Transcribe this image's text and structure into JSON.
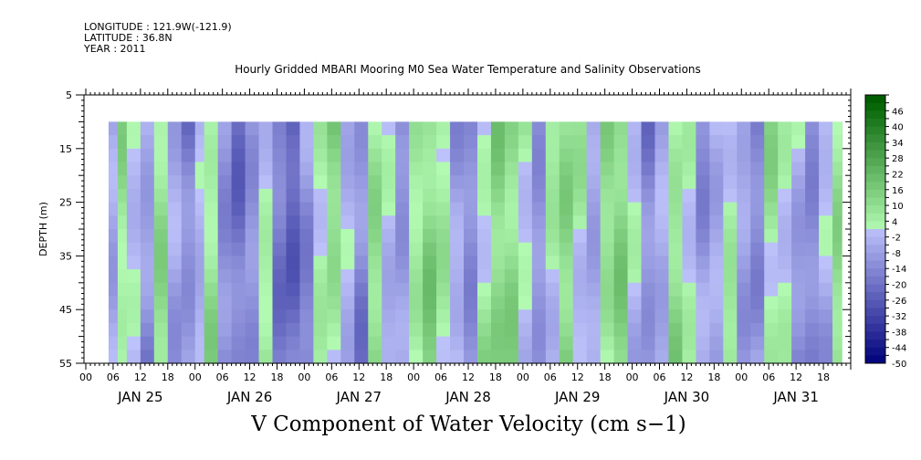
{
  "header": {
    "longitude": "LONGITUDE : 121.9W(-121.9)",
    "latitude": "LATITUDE : 36.8N",
    "year": "YEAR : 2011"
  },
  "chart_data": {
    "type": "heatmap",
    "title": "Hourly Gridded MBARI Mooring M0 Sea Water Temperature and Salinity Observations",
    "variable_label": "V Component of Water Velocity (cm s−1)",
    "ylabel": "DEPTH (m)",
    "ylim": [
      5,
      55
    ],
    "y_reversed": true,
    "y_ticks": [
      5,
      15,
      25,
      35,
      45,
      55
    ],
    "xlim_hours": [
      0,
      168
    ],
    "x_hour_labels": [
      "00",
      "06",
      "12",
      "18",
      "00",
      "06",
      "12",
      "18",
      "00",
      "06",
      "12",
      "18",
      "00",
      "06",
      "12",
      "18",
      "00",
      "06",
      "12",
      "18",
      "00",
      "06",
      "12",
      "18",
      "00",
      "06",
      "12",
      "18"
    ],
    "day_labels": [
      "JAN 25",
      "JAN 26",
      "JAN 27",
      "JAN 28",
      "JAN 29",
      "JAN 30",
      "JAN 31"
    ],
    "data_depth_range": [
      10,
      55
    ],
    "data_time_range_hours": [
      5,
      166
    ],
    "colorbar": {
      "labels": [
        "46",
        "40",
        "34",
        "28",
        "22",
        "16",
        "10",
        "4",
        "-2",
        "-8",
        "-14",
        "-20",
        "-26",
        "-32",
        "-38",
        "-44",
        "-50"
      ],
      "min": -50,
      "max": 52,
      "step": 3
    },
    "columns_mean_velocity": [
      {
        "hour": 5,
        "v": -6
      },
      {
        "hour": 7,
        "v": 6
      },
      {
        "hour": 9,
        "v": -2
      },
      {
        "hour": 12,
        "v": -10
      },
      {
        "hour": 15,
        "v": 8
      },
      {
        "hour": 18,
        "v": -8
      },
      {
        "hour": 21,
        "v": -14
      },
      {
        "hour": 24,
        "v": -4
      },
      {
        "hour": 26,
        "v": 6
      },
      {
        "hour": 29,
        "v": -12
      },
      {
        "hour": 32,
        "v": -18
      },
      {
        "hour": 35,
        "v": -10
      },
      {
        "hour": 38,
        "v": 4
      },
      {
        "hour": 41,
        "v": -16
      },
      {
        "hour": 44,
        "v": -22
      },
      {
        "hour": 47,
        "v": -12
      },
      {
        "hour": 50,
        "v": 4
      },
      {
        "hour": 53,
        "v": 10
      },
      {
        "hour": 56,
        "v": -4
      },
      {
        "hour": 59,
        "v": -14
      },
      {
        "hour": 62,
        "v": 8
      },
      {
        "hour": 65,
        "v": -4
      },
      {
        "hour": 68,
        "v": -12
      },
      {
        "hour": 71,
        "v": 4
      },
      {
        "hour": 74,
        "v": 12
      },
      {
        "hour": 77,
        "v": 6
      },
      {
        "hour": 80,
        "v": -6
      },
      {
        "hour": 83,
        "v": -12
      },
      {
        "hour": 86,
        "v": 4
      },
      {
        "hour": 89,
        "v": 14
      },
      {
        "hour": 92,
        "v": 12
      },
      {
        "hour": 95,
        "v": 2
      },
      {
        "hour": 98,
        "v": -10
      },
      {
        "hour": 101,
        "v": 4
      },
      {
        "hour": 104,
        "v": 12
      },
      {
        "hour": 107,
        "v": 2
      },
      {
        "hour": 110,
        "v": -8
      },
      {
        "hour": 113,
        "v": 8
      },
      {
        "hour": 116,
        "v": 12
      },
      {
        "hour": 119,
        "v": -2
      },
      {
        "hour": 122,
        "v": -14
      },
      {
        "hour": 125,
        "v": -6
      },
      {
        "hour": 128,
        "v": 8
      },
      {
        "hour": 131,
        "v": 2
      },
      {
        "hour": 134,
        "v": -10
      },
      {
        "hour": 137,
        "v": -4
      },
      {
        "hour": 140,
        "v": 6
      },
      {
        "hour": 143,
        "v": -6
      },
      {
        "hour": 146,
        "v": -12
      },
      {
        "hour": 149,
        "v": 8
      },
      {
        "hour": 152,
        "v": 2
      },
      {
        "hour": 155,
        "v": -8
      },
      {
        "hour": 158,
        "v": -14
      },
      {
        "hour": 161,
        "v": -4
      },
      {
        "hour": 164,
        "v": 8
      },
      {
        "hour": 166,
        "v": 10
      }
    ]
  }
}
